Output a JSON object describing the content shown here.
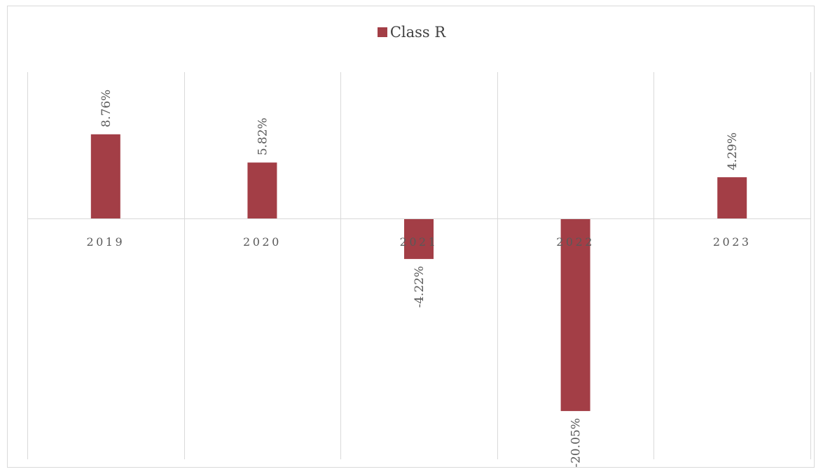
{
  "chart_data": {
    "type": "bar",
    "categories": [
      "2019",
      "2020",
      "2021",
      "2022",
      "2023"
    ],
    "series": [
      {
        "name": "Class R",
        "values": [
          8.76,
          5.82,
          -4.22,
          -20.05,
          4.29
        ],
        "labels": [
          "8.76%",
          "5.82%",
          "-4.22%",
          "-20.05%",
          "4.29%"
        ]
      }
    ],
    "ylim": [
      -25,
      15
    ],
    "grid": "vertical",
    "legend": "top",
    "colors": {
      "bar": "#a33e46",
      "grid": "#d9d9d9",
      "axis": "#d9d9d9",
      "text": "#595959"
    }
  }
}
